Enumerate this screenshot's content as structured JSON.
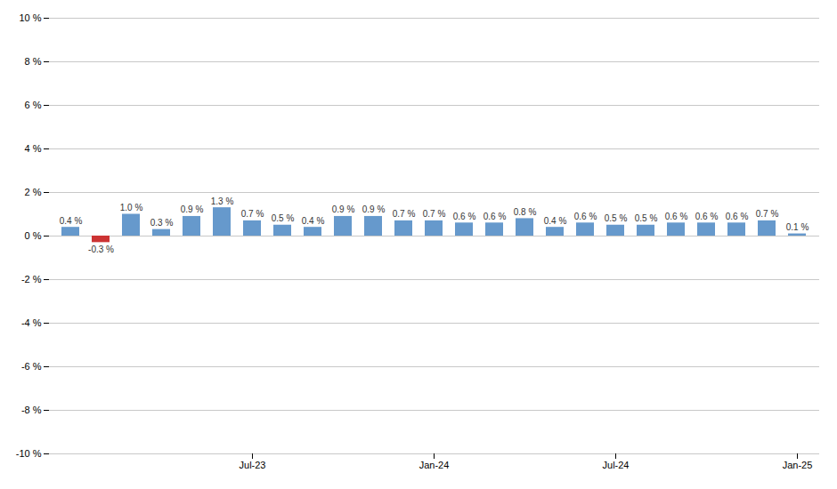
{
  "chart_data": {
    "type": "bar",
    "categories": [
      null,
      null,
      null,
      null,
      null,
      null,
      "Jul-23",
      null,
      null,
      null,
      null,
      null,
      "Jan-24",
      null,
      null,
      null,
      null,
      null,
      "Jul-24",
      null,
      null,
      null,
      null,
      null,
      "Jan-25"
    ],
    "values": [
      0.4,
      -0.3,
      1.0,
      0.3,
      0.9,
      1.3,
      0.7,
      0.5,
      0.4,
      0.9,
      0.9,
      0.7,
      0.7,
      0.6,
      0.6,
      0.8,
      0.4,
      0.6,
      0.5,
      0.5,
      0.6,
      0.6,
      0.6,
      0.7,
      0.1
    ],
    "value_labels": [
      "0.4 %",
      "-0.3 %",
      "1.0 %",
      "0.3 %",
      "0.9 %",
      "1.3 %",
      "0.7 %",
      "0.5 %",
      "0.4 %",
      "0.9 %",
      "0.9 %",
      "0.7 %",
      "0.7 %",
      "0.6 %",
      "0.6 %",
      "0.8 %",
      "0.4 %",
      "0.6 %",
      "0.5 %",
      "0.5 %",
      "0.6 %",
      "0.6 %",
      "0.6 %",
      "0.7 %",
      "0.1 %"
    ],
    "colors": [
      "#6699cc",
      "#cc3333",
      "#6699cc",
      "#6699cc",
      "#6699cc",
      "#6699cc",
      "#6699cc",
      "#6699cc",
      "#6699cc",
      "#6699cc",
      "#6699cc",
      "#6699cc",
      "#6699cc",
      "#6699cc",
      "#6699cc",
      "#6699cc",
      "#6699cc",
      "#6699cc",
      "#6699cc",
      "#6699cc",
      "#6699cc",
      "#6699cc",
      "#6699cc",
      "#6699cc",
      "#6699cc"
    ],
    "ylim": [
      -10,
      10
    ],
    "yticks": [
      {
        "value": -10,
        "label": "-10 %"
      },
      {
        "value": -8,
        "label": "-8 %"
      },
      {
        "value": -6,
        "label": "-6 %"
      },
      {
        "value": -4,
        "label": "-4 %"
      },
      {
        "value": -2,
        "label": "-2 %"
      },
      {
        "value": 0,
        "label": "0 %"
      },
      {
        "value": 2,
        "label": "2 %"
      },
      {
        "value": 4,
        "label": "4 %"
      },
      {
        "value": 6,
        "label": "6 %"
      },
      {
        "value": 8,
        "label": "8 %"
      },
      {
        "value": 10,
        "label": "10 %"
      }
    ],
    "grid": true,
    "data_labels": true
  }
}
